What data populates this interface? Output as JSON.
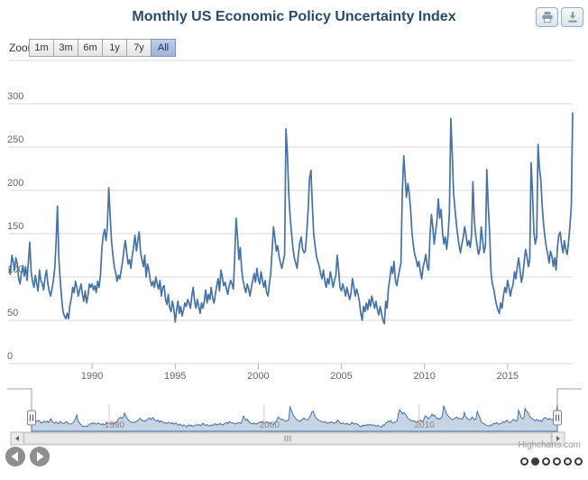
{
  "title": "Monthly US Economic Policy Uncertainty Index",
  "export_buttons": [
    {
      "icon": "printer-icon"
    },
    {
      "icon": "download-icon"
    }
  ],
  "range_selector": {
    "label": "Zoom",
    "buttons": [
      "1m",
      "3m",
      "6m",
      "1y",
      "7y",
      "All"
    ],
    "selected": "All"
  },
  "chart_data": {
    "type": "line",
    "title": "Monthly US Economic Policy Uncertainty Index",
    "x_unit": "month",
    "x_start": "1985-01",
    "x_end": "2018-12",
    "xticks": [
      1990,
      1995,
      2000,
      2005,
      2010,
      2015
    ],
    "yticks": [
      0,
      50,
      100,
      150,
      200,
      250,
      300
    ],
    "ylim": [
      0,
      350
    ],
    "grid": "horizontal",
    "legend": "none",
    "series": [
      {
        "name": "US Economic Policy Uncertainty Index",
        "color": "#4572a7",
        "values": [
          110,
          103,
          125,
          118,
          108,
          122,
          115,
          98,
          92,
          105,
          113,
          101,
          112,
          96,
          118,
          140,
          105,
          95,
          88,
          102,
          92,
          84,
          108,
          96,
          92,
          85,
          99,
          108,
          93,
          84,
          78,
          86,
          95,
          110,
          140,
          182,
          120,
          96,
          75,
          60,
          55,
          52,
          58,
          52,
          68,
          75,
          88,
          82,
          95,
          88,
          78,
          85,
          92,
          80,
          72,
          84,
          70,
          78,
          92,
          88,
          92,
          85,
          90,
          82,
          95,
          88,
          102,
          132,
          148,
          155,
          142,
          158,
          203,
          172,
          142,
          125,
          112,
          105,
          95,
          102,
          98,
          108,
          118,
          132,
          142,
          128,
          115,
          120,
          110,
          125,
          135,
          148,
          130,
          142,
          152,
          128,
          120,
          112,
          125,
          100,
          115,
          108,
          96,
          90,
          95,
          88,
          100,
          92,
          86,
          96,
          78,
          88,
          90,
          75,
          68,
          80,
          65,
          60,
          72,
          64,
          48,
          62,
          72,
          58,
          66,
          55,
          62,
          70,
          66,
          74,
          70,
          64,
          78,
          88,
          72,
          64,
          74,
          66,
          58,
          70,
          64,
          72,
          85,
          70,
          80,
          74,
          88,
          76,
          70,
          80,
          90,
          98,
          84,
          108,
          100,
          90,
          94,
          86,
          80,
          90,
          96,
          92,
          86,
          125,
          168,
          146,
          120,
          134,
          108,
          96,
          88,
          82,
          92,
          86,
          78,
          88,
          96,
          104,
          94,
          110,
          98,
          92,
          106,
          96,
          88,
          96,
          82,
          78,
          92,
          104,
          132,
          158,
          145,
          130,
          136,
          124,
          116,
          110,
          118,
          126,
          271,
          242,
          196,
          170,
          150,
          134,
          122,
          116,
          110,
          126,
          140,
          146,
          132,
          128,
          130,
          152,
          178,
          214,
          223,
          184,
          150,
          136,
          124,
          118,
          112,
          104,
          98,
          108,
          96,
          88,
          98,
          92,
          106,
          98,
          88,
          96,
          102,
          125,
          108,
          88,
          84,
          92,
          86,
          78,
          88,
          80,
          74,
          82,
          98,
          88,
          78,
          86,
          80,
          72,
          58,
          50,
          66,
          60,
          70,
          62,
          74,
          66,
          78,
          70,
          64,
          72,
          62,
          56,
          66,
          58,
          50,
          46,
          72,
          64,
          88,
          98,
          112,
          104,
          118,
          96,
          90,
          100,
          108,
          116,
          198,
          240,
          216,
          192,
          208,
          196,
          178,
          150,
          136,
          126,
          120,
          112,
          118,
          106,
          98,
          112,
          118,
          126,
          112,
          108,
          148,
          172,
          158,
          138,
          152,
          165,
          190,
          168,
          178,
          152,
          138,
          146,
          132,
          148,
          174,
          283,
          244,
          198,
          178,
          162,
          148,
          136,
          128,
          138,
          146,
          158,
          148,
          136,
          142,
          134,
          148,
          210,
          164,
          148,
          136,
          126,
          132,
          158,
          142,
          128,
          136,
          224,
          184,
          152,
          106,
          92,
          86,
          76,
          68,
          62,
          58,
          70,
          64,
          78,
          88,
          82,
          96,
          88,
          78,
          86,
          92,
          106,
          98,
          112,
          122,
          108,
          94,
          102,
          118,
          132,
          124,
          112,
          120,
          232,
          196,
          152,
          138,
          146,
          253,
          226,
          212,
          182,
          160,
          146,
          134,
          126,
          116,
          130,
          124,
          112,
          122,
          108,
          134,
          148,
          152,
          138,
          128,
          142,
          132,
          126,
          140,
          158,
          182,
          290
        ]
      }
    ]
  },
  "navigator": {
    "xticks": [
      1990,
      2000,
      2010
    ],
    "handle_icon": "drag-handle-icon"
  },
  "scrollbar": {
    "left_icon": "scroll-left-arrow-icon",
    "right_icon": "scroll-right-arrow-icon",
    "grip_icon": "grip-rifles-icon"
  },
  "pager": {
    "prev_icon": "prev-arrow-icon",
    "next_icon": "next-arrow-icon"
  },
  "pagination": {
    "count": 6,
    "active_index": 1
  },
  "credit": "Highcharts.com",
  "colors": {
    "series": "#4572a7",
    "title_text": "#274b6d",
    "selected_button_bg": "#a3b9e0",
    "navigator_fill": "rgba(69,114,167,0.3)",
    "gridline": "#d8d8d8",
    "axis_label": "#666666"
  }
}
